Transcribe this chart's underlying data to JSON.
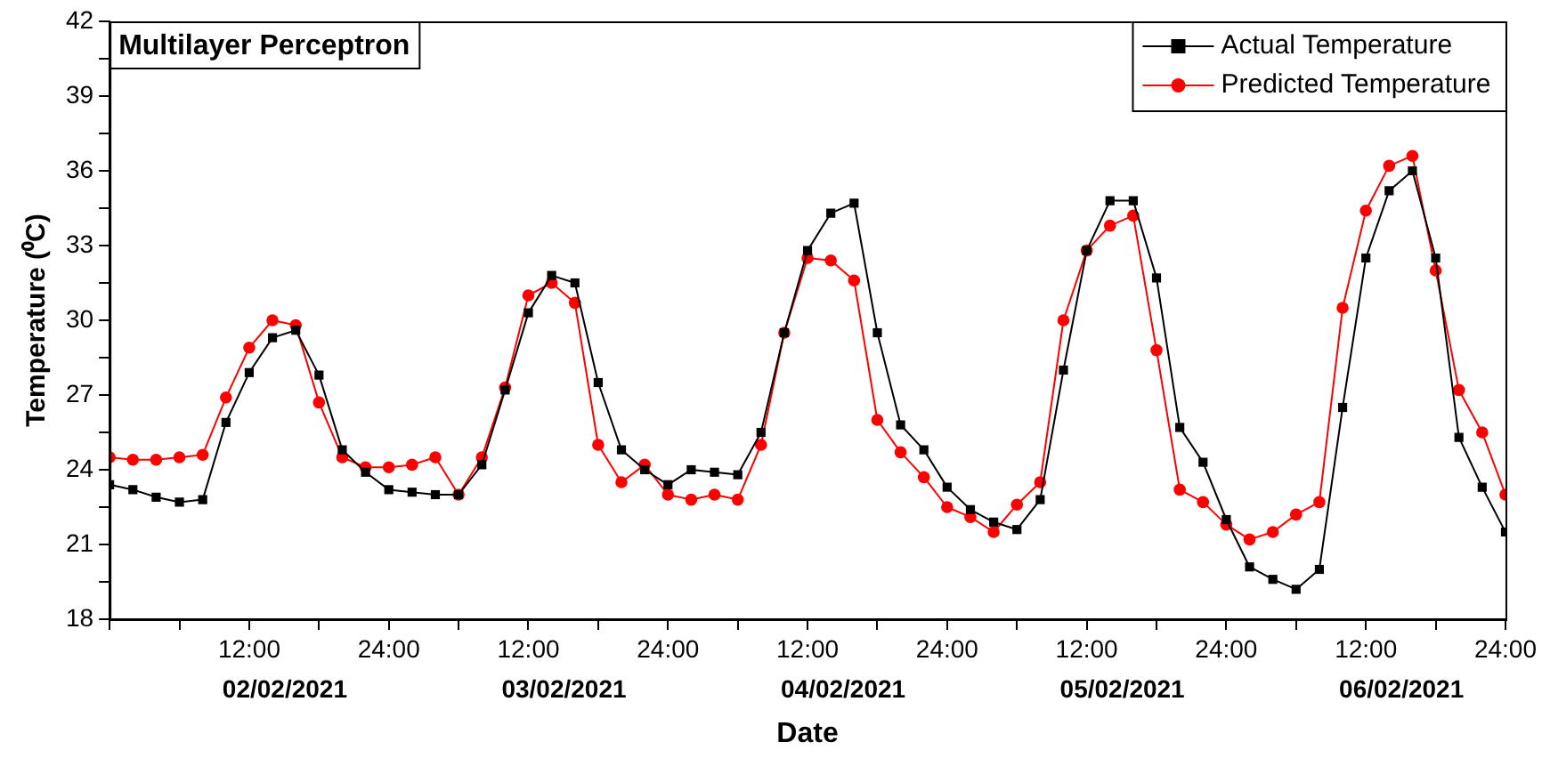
{
  "chart_data": {
    "type": "line",
    "title": "Multilayer Perceptron",
    "xlabel": "Date",
    "ylabel": "Temperature (⁰C)",
    "x": [
      "2021-02-02T00:00",
      "2021-02-02T02:00",
      "2021-02-02T04:00",
      "2021-02-02T06:00",
      "2021-02-02T08:00",
      "2021-02-02T10:00",
      "2021-02-02T12:00",
      "2021-02-02T14:00",
      "2021-02-02T16:00",
      "2021-02-02T18:00",
      "2021-02-02T20:00",
      "2021-02-02T22:00",
      "2021-02-03T00:00",
      "2021-02-03T02:00",
      "2021-02-03T04:00",
      "2021-02-03T06:00",
      "2021-02-03T08:00",
      "2021-02-03T10:00",
      "2021-02-03T12:00",
      "2021-02-03T14:00",
      "2021-02-03T16:00",
      "2021-02-03T18:00",
      "2021-02-03T20:00",
      "2021-02-03T22:00",
      "2021-02-04T00:00",
      "2021-02-04T02:00",
      "2021-02-04T04:00",
      "2021-02-04T06:00",
      "2021-02-04T08:00",
      "2021-02-04T10:00",
      "2021-02-04T12:00",
      "2021-02-04T14:00",
      "2021-02-04T16:00",
      "2021-02-04T18:00",
      "2021-02-04T20:00",
      "2021-02-04T22:00",
      "2021-02-05T00:00",
      "2021-02-05T02:00",
      "2021-02-05T04:00",
      "2021-02-05T06:00",
      "2021-02-05T08:00",
      "2021-02-05T10:00",
      "2021-02-05T12:00",
      "2021-02-05T14:00",
      "2021-02-05T16:00",
      "2021-02-05T18:00",
      "2021-02-05T20:00",
      "2021-02-05T22:00",
      "2021-02-06T00:00",
      "2021-02-06T02:00",
      "2021-02-06T04:00",
      "2021-02-06T06:00",
      "2021-02-06T08:00",
      "2021-02-06T10:00",
      "2021-02-06T12:00",
      "2021-02-06T14:00",
      "2021-02-06T16:00",
      "2021-02-06T18:00",
      "2021-02-06T20:00",
      "2021-02-06T22:00",
      "2021-02-07T00:00"
    ],
    "series": [
      {
        "name": "Actual Temperature",
        "color": "#000000",
        "marker": "square",
        "values": [
          23.4,
          23.2,
          22.9,
          22.7,
          22.8,
          25.9,
          27.9,
          29.3,
          29.6,
          27.8,
          24.8,
          23.9,
          23.2,
          23.1,
          23.0,
          23.0,
          24.2,
          27.2,
          30.3,
          31.8,
          31.5,
          27.5,
          24.8,
          24.0,
          23.4,
          24.0,
          23.9,
          23.8,
          25.5,
          29.5,
          32.8,
          34.3,
          34.7,
          29.5,
          25.8,
          24.8,
          23.3,
          22.4,
          21.9,
          21.6,
          22.8,
          28.0,
          32.8,
          34.8,
          34.8,
          31.7,
          25.7,
          24.3,
          22.0,
          20.1,
          19.6,
          19.2,
          20.0,
          26.5,
          32.5,
          35.2,
          36.0,
          32.5,
          25.3,
          23.3,
          21.5
        ]
      },
      {
        "name": "Predicted Temperature",
        "color": "#ff0000",
        "marker": "circle",
        "values": [
          24.5,
          24.4,
          24.4,
          24.5,
          24.6,
          26.9,
          28.9,
          30.0,
          29.8,
          26.7,
          24.5,
          24.1,
          24.1,
          24.2,
          24.5,
          23.0,
          24.5,
          27.3,
          31.0,
          31.5,
          30.7,
          25.0,
          23.5,
          24.2,
          23.0,
          22.8,
          23.0,
          22.8,
          25.0,
          29.5,
          32.5,
          32.4,
          31.6,
          26.0,
          24.7,
          23.7,
          22.5,
          22.1,
          21.5,
          22.6,
          23.5,
          30.0,
          32.8,
          33.8,
          34.2,
          28.8,
          23.2,
          22.7,
          21.8,
          21.2,
          21.5,
          22.2,
          22.7,
          30.5,
          34.4,
          36.2,
          36.6,
          32.0,
          27.2,
          25.5,
          23.0
        ]
      }
    ],
    "xlim": [
      "2021-02-02T00:00",
      "2021-02-07T00:00"
    ],
    "xticks": [
      {
        "value": "2021-02-02T00:00",
        "label": null
      },
      {
        "value": "2021-02-02T06:00",
        "label": null
      },
      {
        "value": "2021-02-02T12:00",
        "label": "12:00"
      },
      {
        "value": "2021-02-02T18:00",
        "label": null
      },
      {
        "value": "2021-02-03T00:00",
        "label": "24:00"
      },
      {
        "value": "2021-02-03T06:00",
        "label": null
      },
      {
        "value": "2021-02-03T12:00",
        "label": "12:00"
      },
      {
        "value": "2021-02-03T18:00",
        "label": null
      },
      {
        "value": "2021-02-04T00:00",
        "label": "24:00"
      },
      {
        "value": "2021-02-04T06:00",
        "label": null
      },
      {
        "value": "2021-02-04T12:00",
        "label": "12:00"
      },
      {
        "value": "2021-02-04T18:00",
        "label": null
      },
      {
        "value": "2021-02-05T00:00",
        "label": "24:00"
      },
      {
        "value": "2021-02-05T06:00",
        "label": null
      },
      {
        "value": "2021-02-05T12:00",
        "label": "12:00"
      },
      {
        "value": "2021-02-05T18:00",
        "label": null
      },
      {
        "value": "2021-02-06T00:00",
        "label": "24:00"
      },
      {
        "value": "2021-02-06T06:00",
        "label": null
      },
      {
        "value": "2021-02-06T12:00",
        "label": "12:00"
      },
      {
        "value": "2021-02-06T18:00",
        "label": null
      },
      {
        "value": "2021-02-07T00:00",
        "label": "24:00"
      }
    ],
    "ylim": [
      18,
      42
    ],
    "yticks": [
      18,
      {
        "value": 19.5,
        "label": null
      },
      21,
      {
        "value": 22.5,
        "label": null
      },
      24,
      {
        "value": 25.5,
        "label": null
      },
      27,
      {
        "value": 28.5,
        "label": null
      },
      30,
      {
        "value": 31.5,
        "label": null
      },
      33,
      {
        "value": 34.5,
        "label": null
      },
      36,
      {
        "value": 37.5,
        "label": null
      },
      39,
      {
        "value": 40.5,
        "label": null
      },
      42
    ],
    "annotations": [
      "02/02/2021",
      "03/02/2021",
      "04/02/2021",
      "05/02/2021",
      "06/02/2021"
    ],
    "grid": false,
    "legend": "top right",
    "line_style": "solid"
  }
}
